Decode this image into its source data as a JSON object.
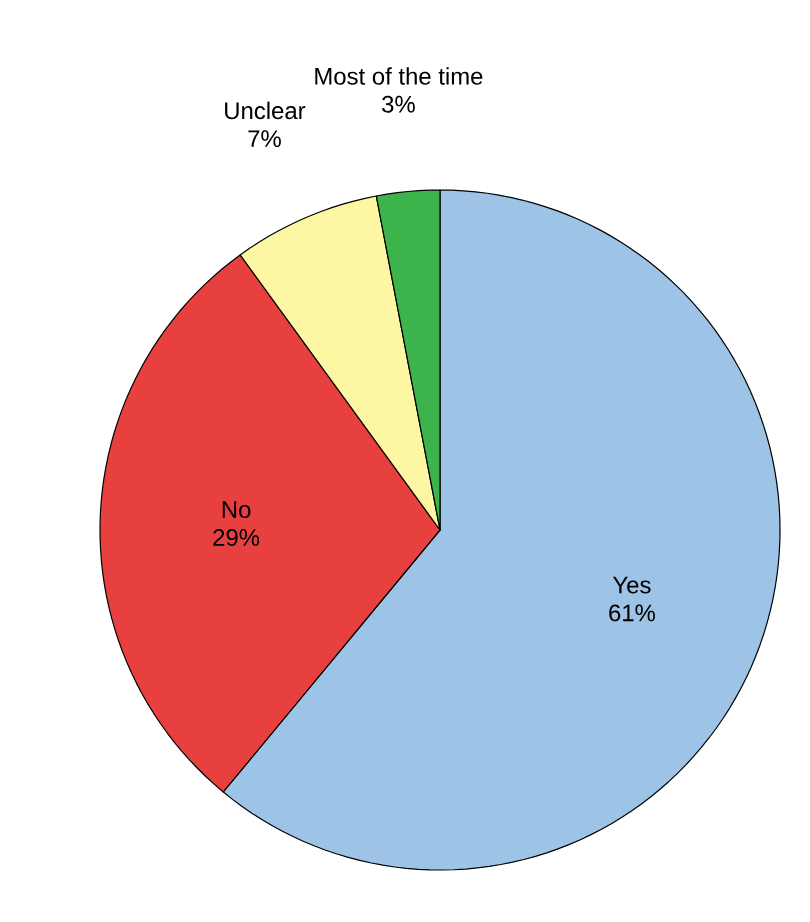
{
  "chart_data": {
    "type": "pie",
    "categories": [
      "Yes",
      "No",
      "Unclear",
      "Most of the time"
    ],
    "values": [
      61,
      29,
      7,
      3
    ],
    "value_labels": [
      "61%",
      "29%",
      "7%",
      "3%"
    ],
    "colors": [
      "#9dc3e6",
      "#e8403f",
      "#fdf6a3",
      "#3cb44b"
    ]
  }
}
